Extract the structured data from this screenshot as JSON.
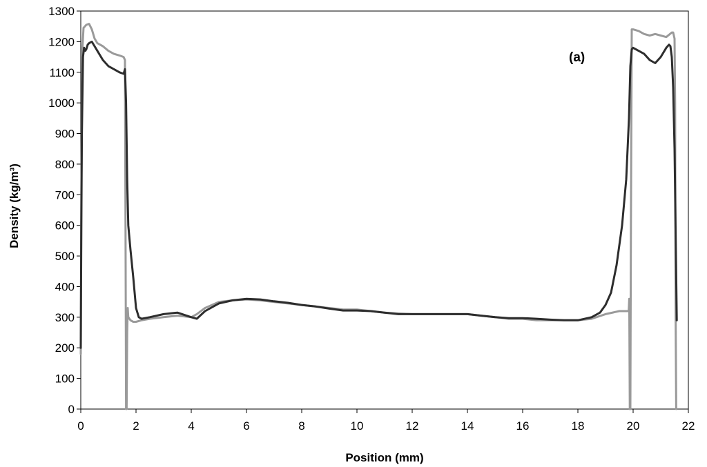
{
  "chart_data": {
    "type": "line",
    "title": "",
    "xlabel": "Position (mm)",
    "ylabel": "Density (kg/m³)",
    "annotation": "(a)",
    "xlim": [
      0,
      22
    ],
    "ylim": [
      0,
      1300
    ],
    "xticks": [
      0,
      2,
      4,
      6,
      8,
      10,
      12,
      14,
      16,
      18,
      20,
      22
    ],
    "yticks": [
      0,
      100,
      200,
      300,
      400,
      500,
      600,
      700,
      800,
      900,
      1000,
      1100,
      1200,
      1300
    ],
    "grid": false,
    "legend": "none",
    "series": [
      {
        "color": "#9a9a9a",
        "x": [
          0.0,
          0.02,
          0.06,
          0.1,
          0.15,
          0.2,
          0.3,
          0.4,
          0.5,
          0.6,
          0.8,
          1.0,
          1.2,
          1.4,
          1.55,
          1.6,
          1.62,
          1.64,
          1.66,
          1.68,
          1.7,
          1.72,
          1.8,
          1.9,
          2.0,
          2.2,
          2.5,
          3.0,
          3.5,
          4.0,
          4.2,
          4.5,
          5.0,
          5.5,
          6.0,
          6.5,
          7.0,
          7.5,
          8.0,
          8.5,
          9.0,
          9.5,
          10.0,
          10.5,
          11.0,
          11.5,
          12.0,
          12.5,
          13.0,
          13.5,
          14.0,
          14.5,
          15.0,
          15.5,
          16.0,
          16.5,
          17.0,
          17.5,
          18.0,
          18.5,
          19.0,
          19.5,
          19.8,
          19.84,
          19.86,
          19.88,
          19.9,
          19.92,
          19.95,
          20.0,
          20.2,
          20.4,
          20.6,
          20.8,
          21.0,
          21.2,
          21.4,
          21.45,
          21.5,
          21.52,
          21.54,
          21.56
        ],
        "y": [
          180,
          700,
          1180,
          1245,
          1250,
          1255,
          1258,
          1240,
          1210,
          1195,
          1185,
          1170,
          1160,
          1155,
          1150,
          1140,
          600,
          0,
          0,
          250,
          330,
          300,
          290,
          285,
          285,
          290,
          295,
          300,
          305,
          300,
          310,
          330,
          350,
          355,
          358,
          355,
          350,
          345,
          340,
          335,
          330,
          325,
          325,
          320,
          315,
          312,
          310,
          310,
          310,
          310,
          310,
          305,
          300,
          295,
          295,
          290,
          290,
          290,
          290,
          295,
          310,
          320,
          320,
          320,
          360,
          0,
          0,
          600,
          1240,
          1240,
          1235,
          1225,
          1220,
          1225,
          1220,
          1215,
          1230,
          1230,
          1210,
          1000,
          300,
          0
        ]
      },
      {
        "color": "#2d2d2d",
        "x": [
          0.0,
          0.02,
          0.04,
          0.08,
          0.12,
          0.16,
          0.2,
          0.25,
          0.3,
          0.4,
          0.5,
          0.6,
          0.8,
          1.0,
          1.2,
          1.4,
          1.55,
          1.6,
          1.64,
          1.68,
          1.72,
          1.8,
          1.9,
          2.0,
          2.1,
          2.2,
          2.5,
          3.0,
          3.5,
          4.0,
          4.2,
          4.5,
          5.0,
          5.5,
          6.0,
          6.5,
          7.0,
          7.5,
          8.0,
          8.5,
          9.0,
          9.5,
          10.0,
          10.5,
          11.0,
          11.5,
          12.0,
          12.5,
          13.0,
          13.5,
          14.0,
          14.5,
          15.0,
          15.5,
          16.0,
          16.5,
          17.0,
          17.5,
          18.0,
          18.5,
          18.8,
          19.0,
          19.2,
          19.4,
          19.6,
          19.75,
          19.85,
          19.9,
          19.95,
          20.0,
          20.2,
          20.4,
          20.6,
          20.8,
          21.0,
          21.2,
          21.3,
          21.35,
          21.4,
          21.45,
          21.5,
          21.55,
          21.58
        ],
        "y": [
          200,
          600,
          900,
          1150,
          1180,
          1170,
          1175,
          1190,
          1195,
          1200,
          1185,
          1170,
          1140,
          1120,
          1110,
          1100,
          1095,
          1110,
          1000,
          750,
          600,
          520,
          430,
          330,
          300,
          295,
          300,
          310,
          315,
          300,
          295,
          320,
          345,
          355,
          360,
          358,
          352,
          347,
          340,
          335,
          328,
          322,
          322,
          320,
          315,
          310,
          310,
          310,
          310,
          310,
          310,
          305,
          300,
          297,
          297,
          295,
          292,
          290,
          290,
          300,
          315,
          340,
          380,
          470,
          600,
          750,
          950,
          1120,
          1175,
          1180,
          1170,
          1160,
          1140,
          1130,
          1150,
          1180,
          1190,
          1185,
          1150,
          1050,
          850,
          500,
          290
        ]
      }
    ]
  }
}
